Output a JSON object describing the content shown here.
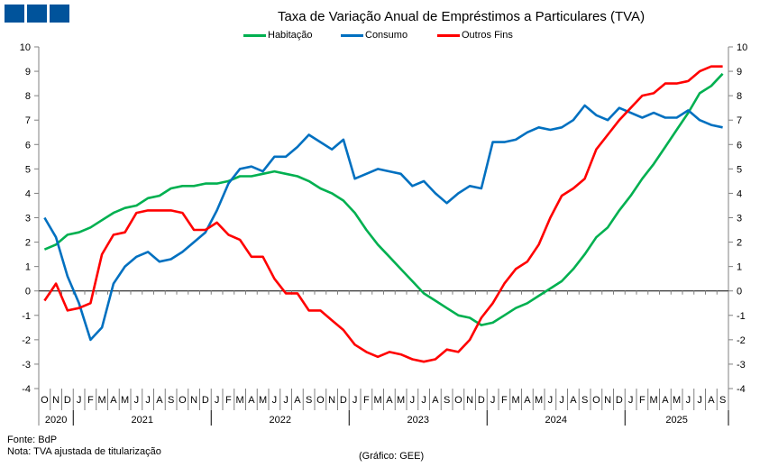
{
  "title": "Taxa de Variação Anual de Empréstimos a Particulares (TVA)",
  "source": "Fonte: BdP",
  "note": "Nota: TVA ajustada de titularização",
  "credit": "(Gráfico: GEE)",
  "chart_data": {
    "type": "line",
    "title": "Taxa de Variação Anual de Empréstimos a Particulares (TVA)",
    "xlabel": "",
    "ylabel": "",
    "ylim": [
      -4,
      10
    ],
    "yticks": [
      -4,
      -3,
      -2,
      -1,
      0,
      1,
      2,
      3,
      4,
      5,
      6,
      7,
      8,
      9,
      10
    ],
    "legend_position": "top-center",
    "months": [
      "O",
      "N",
      "D",
      "J",
      "F",
      "M",
      "A",
      "M",
      "J",
      "J",
      "A",
      "S",
      "O",
      "N",
      "D",
      "J",
      "F",
      "M",
      "A",
      "M",
      "J",
      "J",
      "A",
      "S",
      "O",
      "N",
      "D",
      "J",
      "F",
      "M",
      "A",
      "M",
      "J",
      "J",
      "A",
      "S",
      "O",
      "N",
      "D",
      "J",
      "F",
      "M",
      "A",
      "M",
      "J",
      "J",
      "A",
      "S",
      "O",
      "N",
      "D",
      "J",
      "F",
      "M",
      "A",
      "M",
      "J",
      "J",
      "A",
      "S"
    ],
    "years": [
      {
        "label": "2020",
        "count": 3
      },
      {
        "label": "2021",
        "count": 12
      },
      {
        "label": "2022",
        "count": 12
      },
      {
        "label": "2023",
        "count": 12
      },
      {
        "label": "2024",
        "count": 12
      },
      {
        "label": "2025",
        "count": 9
      }
    ],
    "series": [
      {
        "name": "Habitação",
        "color": "#00b050",
        "values": [
          1.7,
          1.9,
          2.3,
          2.4,
          2.6,
          2.9,
          3.2,
          3.4,
          3.5,
          3.8,
          3.9,
          4.2,
          4.3,
          4.3,
          4.4,
          4.4,
          4.5,
          4.7,
          4.7,
          4.8,
          4.9,
          4.8,
          4.7,
          4.5,
          4.2,
          4.0,
          3.7,
          3.2,
          2.5,
          1.9,
          1.4,
          0.9,
          0.4,
          -0.1,
          -0.4,
          -0.7,
          -1.0,
          -1.1,
          -1.4,
          -1.3,
          -1.0,
          -0.7,
          -0.5,
          -0.2,
          0.1,
          0.4,
          0.9,
          1.5,
          2.2,
          2.6,
          3.3,
          3.9,
          4.6,
          5.2,
          5.9,
          6.6,
          7.3,
          8.1,
          8.4,
          8.9
        ]
      },
      {
        "name": "Consumo",
        "color": "#0070c0",
        "values": [
          3.0,
          2.2,
          0.6,
          -0.5,
          -2.0,
          -1.5,
          0.3,
          1.0,
          1.4,
          1.6,
          1.2,
          1.3,
          1.6,
          2.0,
          2.4,
          3.3,
          4.4,
          5.0,
          5.1,
          4.9,
          5.5,
          5.5,
          5.9,
          6.4,
          6.1,
          5.8,
          6.2,
          4.6,
          4.8,
          5.0,
          4.9,
          4.8,
          4.3,
          4.5,
          4.0,
          3.6,
          4.0,
          4.3,
          4.2,
          6.1,
          6.1,
          6.2,
          6.5,
          6.7,
          6.6,
          6.7,
          7.0,
          7.6,
          7.2,
          7.0,
          7.5,
          7.3,
          7.1,
          7.3,
          7.1,
          7.1,
          7.4,
          7.0,
          6.8,
          6.7
        ]
      },
      {
        "name": "Outros Fins",
        "color": "#ff0000",
        "values": [
          -0.4,
          0.3,
          -0.8,
          -0.7,
          -0.5,
          1.5,
          2.3,
          2.4,
          3.2,
          3.3,
          3.3,
          3.3,
          3.2,
          2.5,
          2.5,
          2.8,
          2.3,
          2.1,
          1.4,
          1.4,
          0.5,
          -0.1,
          -0.1,
          -0.8,
          -0.8,
          -1.2,
          -1.6,
          -2.2,
          -2.5,
          -2.7,
          -2.5,
          -2.6,
          -2.8,
          -2.9,
          -2.8,
          -2.4,
          -2.5,
          -2.0,
          -1.1,
          -0.5,
          0.3,
          0.9,
          1.2,
          1.9,
          3.0,
          3.9,
          4.2,
          4.6,
          5.8,
          6.4,
          7.0,
          7.5,
          8.0,
          8.1,
          8.5,
          8.5,
          8.6,
          9.0,
          9.2,
          9.2
        ]
      }
    ]
  }
}
